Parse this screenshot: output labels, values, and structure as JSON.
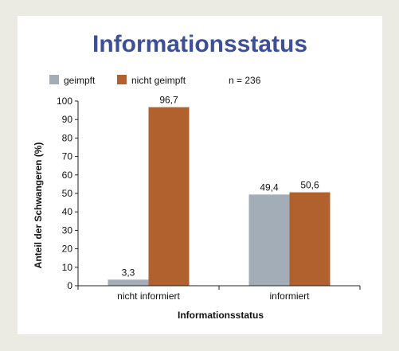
{
  "chart_data": {
    "type": "bar",
    "title": "Informationsstatus",
    "xlabel": "Informationsstatus",
    "ylabel": "Anteil der Schwangeren (%)",
    "note": "n = 236",
    "categories": [
      "nicht informiert",
      "informiert"
    ],
    "series": [
      {
        "name": "geimpft",
        "color": "#a3adb7",
        "values": [
          3.3,
          49.4
        ],
        "labels": [
          "3,3",
          "49,4"
        ]
      },
      {
        "name": "nicht geimpft",
        "color": "#b0612e",
        "values": [
          96.7,
          50.6
        ],
        "labels": [
          "96,7",
          "50,6"
        ]
      }
    ],
    "ylim": [
      0,
      100
    ],
    "yticks": [
      0,
      10,
      20,
      30,
      40,
      50,
      60,
      70,
      80,
      90,
      100
    ],
    "legend_position": "top-left",
    "grid": false
  }
}
